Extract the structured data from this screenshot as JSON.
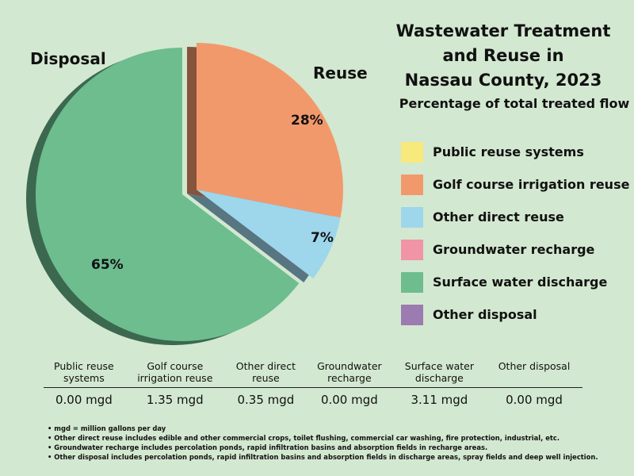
{
  "chart_data": {
    "type": "pie",
    "title": "Wastewater Treatment and Reuse in Nassau County, 2023",
    "title_lines": [
      "Wastewater Treatment",
      "and Reuse in",
      "Nassau County, 2023"
    ],
    "subtitle": "Percentage of total treated flow",
    "categories": [
      "Public reuse systems",
      "Golf course irrigation reuse",
      "Other direct reuse",
      "Groundwater recharge",
      "Surface water discharge",
      "Other disposal"
    ],
    "values": [
      0.0,
      1.35,
      0.35,
      0.0,
      3.11,
      0.0
    ],
    "value_labels": [
      "0.00 mgd",
      "1.35 mgd",
      "0.35 mgd",
      "0.00 mgd",
      "3.11 mgd",
      "0.00 mgd"
    ],
    "percent_labels": {
      "golf": "28%",
      "other_direct": "7%",
      "surface": "65%"
    },
    "colors": [
      "#f8e97c",
      "#f2996c",
      "#9ed6ec",
      "#f094a6",
      "#6dbd8f",
      "#9b7bb0"
    ],
    "group_labels": {
      "reuse": "Reuse",
      "disposal": "Disposal"
    },
    "legend_position": "right",
    "exploded": "reuse group"
  },
  "table": {
    "headers": [
      [
        "Public reuse",
        "systems"
      ],
      [
        "Golf course",
        "irrigation reuse"
      ],
      [
        "Other direct",
        "reuse"
      ],
      [
        "Groundwater",
        "recharge"
      ],
      [
        "Surface water",
        "discharge"
      ],
      [
        "Other disposal"
      ]
    ]
  },
  "notes": [
    "• mgd = million gallons per day",
    "• Other direct reuse includes edible and other commercial crops, toilet flushing, commercial car washing, fire protection, industrial, etc.",
    "• Groundwater recharge includes percolation ponds, rapid infiltration basins and absorption fields in recharge areas.",
    "• Other disposal includes percolation ponds, rapid infiltration basins and absorption fields in discharge areas, spray fields and deep well injection."
  ]
}
